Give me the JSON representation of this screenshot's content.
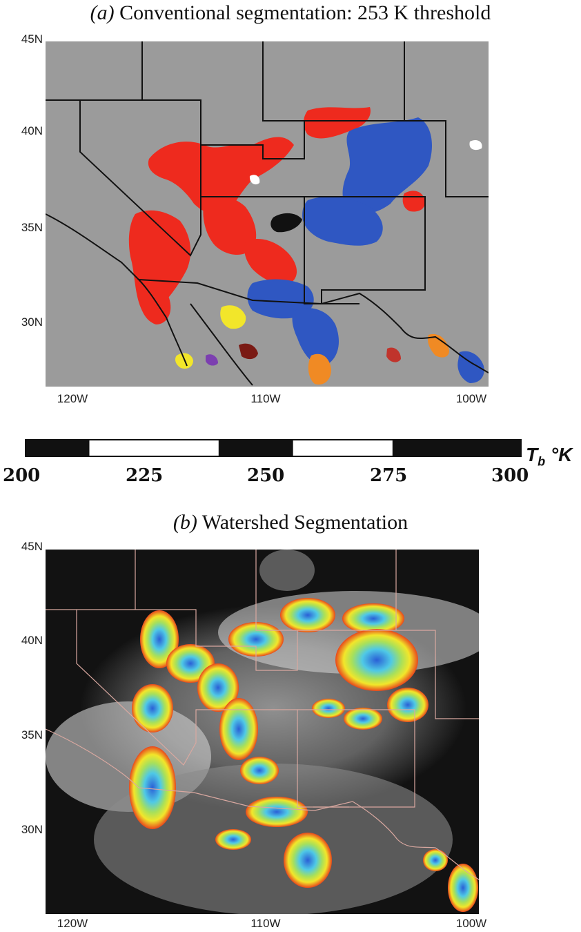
{
  "panel_a": {
    "label": "(a)",
    "title": "Conventional segmentation: 253 K threshold",
    "lat_ticks": [
      "45N",
      "40N",
      "35N",
      "30N"
    ],
    "lon_ticks": [
      "120W",
      "110W",
      "100W"
    ]
  },
  "colorbar": {
    "ticks": [
      "200",
      "225",
      "250",
      "275",
      "300"
    ],
    "unit_symbol": "T",
    "unit_sub": "b",
    "unit_tail": " °K",
    "range": [
      200,
      300
    ],
    "segments": [
      {
        "from": 200,
        "to": 213,
        "color": "#111111"
      },
      {
        "from": 213,
        "to": 239,
        "color": "#ffffff"
      },
      {
        "from": 239,
        "to": 254,
        "color": "#111111"
      },
      {
        "from": 254,
        "to": 274,
        "color": "#ffffff"
      },
      {
        "from": 274,
        "to": 300,
        "color": "#111111"
      }
    ]
  },
  "panel_b": {
    "label": "(b)",
    "title": "Watershed Segmentation",
    "lat_ticks": [
      "45N",
      "40N",
      "35N",
      "30N"
    ],
    "lon_ticks": [
      "120W",
      "110W",
      "100W"
    ]
  },
  "colors": {
    "map_gray": "#9b9b9b",
    "cluster_red": "#ee2a1e",
    "cluster_blue": "#2f57c2",
    "cluster_yellow": "#f2e62a",
    "cluster_orange": "#f08a24",
    "ir_dark": "#121212"
  }
}
